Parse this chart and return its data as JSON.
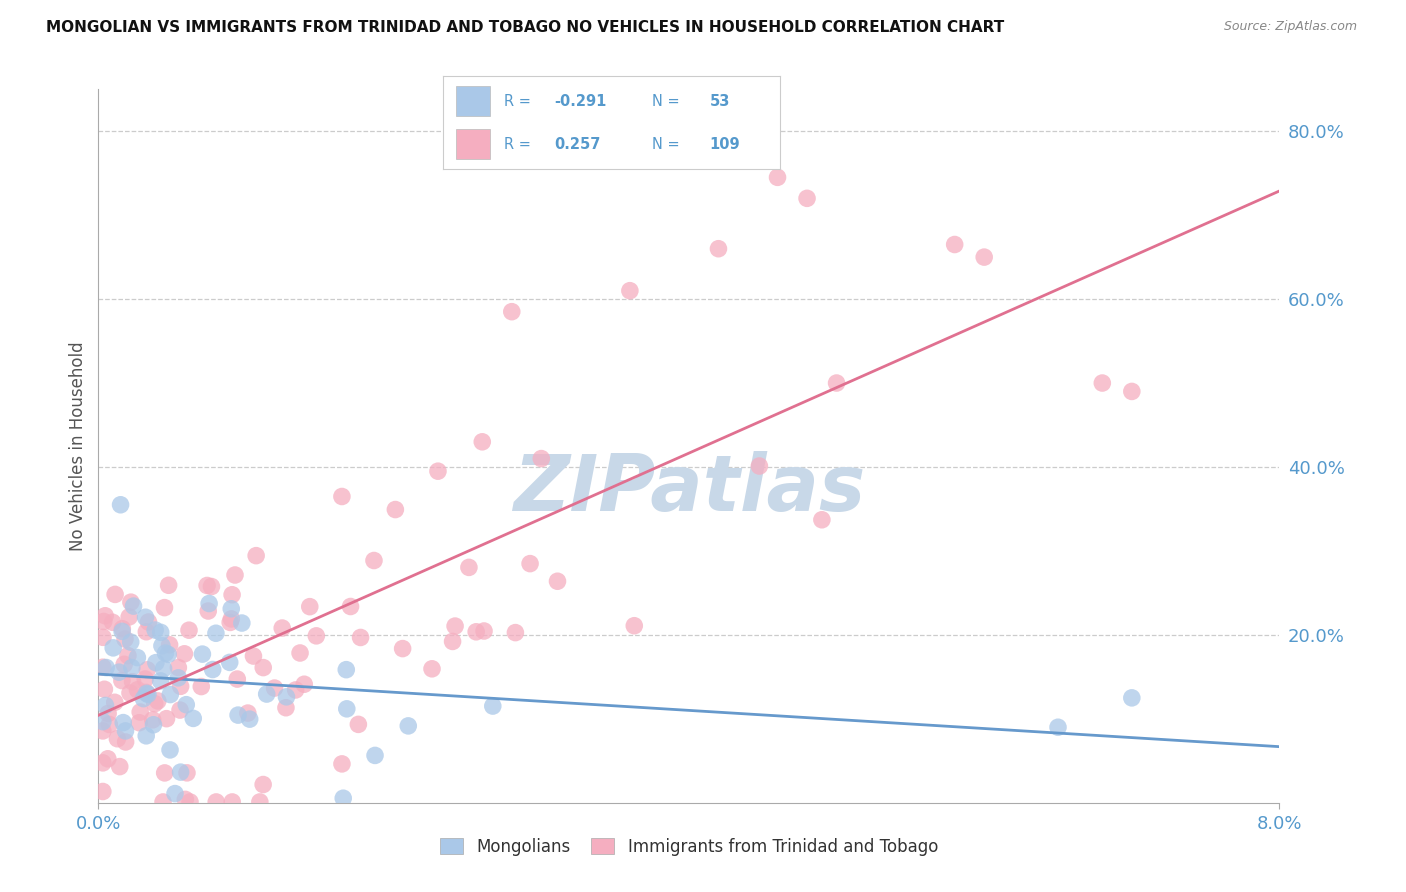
{
  "title": "MONGOLIAN VS IMMIGRANTS FROM TRINIDAD AND TOBAGO NO VEHICLES IN HOUSEHOLD CORRELATION CHART",
  "source": "Source: ZipAtlas.com",
  "ylabel": "No Vehicles in Household",
  "xlabel_mongolians": "Mongolians",
  "xlabel_tt": "Immigrants from Trinidad and Tobago",
  "r_mongolian": -0.291,
  "n_mongolian": 53,
  "r_tt": 0.257,
  "n_tt": 109,
  "xlim": [
    0.0,
    0.08
  ],
  "ylim": [
    0.0,
    0.85
  ],
  "ytick_vals": [
    0.0,
    0.2,
    0.4,
    0.6,
    0.8
  ],
  "ytick_labels": [
    "",
    "20.0%",
    "40.0%",
    "60.0%",
    "80.0%"
  ],
  "xtick_vals": [
    0.0,
    0.08
  ],
  "xtick_labels": [
    "0.0%",
    "8.0%"
  ],
  "color_mongolian": "#aac8e8",
  "color_tt": "#f5aec0",
  "line_color_mongolian": "#6699cc",
  "line_color_tt": "#e07090",
  "watermark": "ZIPatlas",
  "watermark_color": "#c8d8e8",
  "bg_color": "#ffffff",
  "grid_color": "#cccccc",
  "tick_color": "#5599cc",
  "title_color": "#111111",
  "ylabel_color": "#555555",
  "legend_text_color": "#5599cc",
  "legend_r_label_color": "#222222",
  "source_color": "#888888"
}
